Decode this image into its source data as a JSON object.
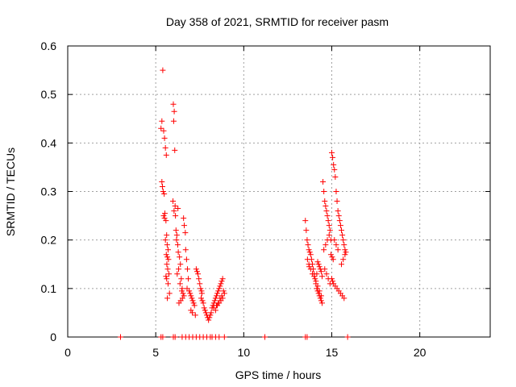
{
  "chart_data": {
    "type": "scatter",
    "title": "Day 358 of 2021, SRMTID for receiver pasm",
    "xlabel": "GPS time / hours",
    "ylabel": "SRMTID / TECUs",
    "xlim": [
      0,
      24
    ],
    "ylim": [
      0,
      0.6
    ],
    "xticks": [
      0,
      5,
      10,
      15,
      20
    ],
    "yticks": [
      0,
      0.1,
      0.2,
      0.3,
      0.4,
      0.5,
      0.6
    ],
    "xtick_labels": [
      "0",
      "5",
      "10",
      "15",
      "20"
    ],
    "ytick_labels": [
      "0",
      "0.1",
      "0.2",
      "0.3",
      "0.4",
      "0.5",
      "0.6"
    ],
    "grid": true,
    "marker": "+",
    "color": "#ff0000",
    "series": [
      {
        "x": [
          5.4,
          5.3,
          5.35,
          5.45,
          5.5,
          5.55,
          5.6,
          5.35,
          5.38,
          5.42,
          5.48,
          5.52,
          5.45,
          5.5,
          5.58,
          5.62,
          5.55,
          5.65,
          5.7,
          5.6,
          5.66,
          5.72,
          5.63,
          5.68,
          5.75,
          5.58,
          5.62,
          5.7,
          5.78,
          5.66,
          6.0,
          6.05,
          6.02,
          6.08,
          5.98,
          6.1,
          6.04,
          6.12,
          6.15,
          6.2,
          6.18,
          6.25,
          6.28,
          6.35,
          6.4,
          6.3,
          6.22,
          6.45,
          6.38,
          6.5,
          6.48,
          6.55,
          6.6,
          6.52,
          6.42,
          6.32,
          6.26,
          6.58,
          6.62,
          6.68,
          6.7,
          6.75,
          6.8,
          6.85,
          6.78,
          6.9,
          6.95,
          7.0,
          7.05,
          7.1,
          7.15,
          7.2,
          7.0,
          7.08,
          7.25,
          7.3,
          7.35,
          7.4,
          7.45,
          7.5,
          7.55,
          7.6,
          7.62,
          7.58,
          7.65,
          7.7,
          7.75,
          7.8,
          7.85,
          7.9,
          7.95,
          8.0,
          8.05,
          8.1,
          8.15,
          8.2,
          8.25,
          8.3,
          8.35,
          8.4,
          8.45,
          8.5,
          8.55,
          8.6,
          8.65,
          8.7,
          8.75,
          8.8,
          8.85,
          8.9,
          8.3,
          8.4,
          8.5,
          8.6,
          8.7,
          8.8,
          8.45,
          8.55,
          8.65,
          8.75,
          13.5,
          13.55,
          13.6,
          13.65,
          13.7,
          13.75,
          13.8,
          13.85,
          13.9,
          13.95,
          14.0,
          14.05,
          14.1,
          14.15,
          14.2,
          14.25,
          14.3,
          14.35,
          14.4,
          14.45,
          13.7,
          13.8,
          13.9,
          14.0,
          14.1,
          14.2,
          14.3,
          14.4,
          13.62,
          13.72,
          14.5,
          14.55,
          14.6,
          14.65,
          14.7,
          14.75,
          14.8,
          14.85,
          14.9,
          14.95,
          15.0,
          15.05,
          15.1,
          15.15,
          15.2,
          15.25,
          15.3,
          15.35,
          15.4,
          15.45,
          15.5,
          15.55,
          15.6,
          15.65,
          15.7,
          15.75,
          15.8,
          14.95,
          15.02,
          15.08,
          14.2,
          14.25,
          14.3,
          14.35,
          14.4,
          14.15,
          14.45,
          15.0,
          15.05,
          15.1,
          15.2,
          15.3,
          15.4,
          15.5,
          15.6,
          15.7,
          14.6,
          14.7,
          14.8,
          14.9,
          15.55,
          15.65,
          15.75,
          14.55,
          14.65,
          14.75,
          14.85,
          15.15,
          15.25,
          15.35,
          3.0,
          5.3,
          5.4,
          6.0,
          6.1,
          6.5,
          6.7,
          6.9,
          7.1,
          7.3,
          7.5,
          7.7,
          7.9,
          8.1,
          8.2,
          8.4,
          8.6,
          8.9,
          11.2,
          13.5,
          13.6,
          15.9
        ],
        "y": [
          0.55,
          0.43,
          0.445,
          0.425,
          0.41,
          0.39,
          0.375,
          0.32,
          0.31,
          0.3,
          0.295,
          0.255,
          0.25,
          0.245,
          0.24,
          0.21,
          0.2,
          0.19,
          0.18,
          0.17,
          0.165,
          0.16,
          0.15,
          0.14,
          0.13,
          0.125,
          0.12,
          0.11,
          0.09,
          0.08,
          0.48,
          0.465,
          0.445,
          0.385,
          0.28,
          0.27,
          0.26,
          0.25,
          0.22,
          0.21,
          0.2,
          0.19,
          0.175,
          0.165,
          0.15,
          0.14,
          0.13,
          0.12,
          0.11,
          0.1,
          0.095,
          0.09,
          0.085,
          0.08,
          0.075,
          0.07,
          0.265,
          0.245,
          0.23,
          0.215,
          0.18,
          0.16,
          0.14,
          0.12,
          0.1,
          0.095,
          0.09,
          0.085,
          0.08,
          0.075,
          0.07,
          0.065,
          0.055,
          0.05,
          0.045,
          0.14,
          0.135,
          0.13,
          0.12,
          0.11,
          0.1,
          0.095,
          0.09,
          0.08,
          0.075,
          0.07,
          0.06,
          0.055,
          0.05,
          0.045,
          0.04,
          0.035,
          0.04,
          0.045,
          0.05,
          0.06,
          0.065,
          0.07,
          0.075,
          0.08,
          0.085,
          0.09,
          0.095,
          0.1,
          0.105,
          0.11,
          0.115,
          0.12,
          0.095,
          0.09,
          0.06,
          0.055,
          0.065,
          0.07,
          0.075,
          0.08,
          0.065,
          0.07,
          0.08,
          0.085,
          0.24,
          0.22,
          0.2,
          0.19,
          0.18,
          0.175,
          0.17,
          0.16,
          0.15,
          0.14,
          0.13,
          0.12,
          0.11,
          0.1,
          0.095,
          0.09,
          0.085,
          0.08,
          0.075,
          0.07,
          0.15,
          0.14,
          0.13,
          0.125,
          0.115,
          0.105,
          0.095,
          0.085,
          0.16,
          0.145,
          0.32,
          0.3,
          0.28,
          0.27,
          0.26,
          0.25,
          0.24,
          0.23,
          0.22,
          0.2,
          0.38,
          0.37,
          0.355,
          0.345,
          0.33,
          0.3,
          0.28,
          0.26,
          0.25,
          0.24,
          0.23,
          0.22,
          0.21,
          0.2,
          0.19,
          0.18,
          0.175,
          0.17,
          0.165,
          0.16,
          0.155,
          0.15,
          0.145,
          0.14,
          0.135,
          0.13,
          0.125,
          0.12,
          0.115,
          0.11,
          0.105,
          0.1,
          0.095,
          0.09,
          0.085,
          0.08,
          0.14,
          0.13,
          0.12,
          0.11,
          0.15,
          0.16,
          0.17,
          0.18,
          0.19,
          0.2,
          0.21,
          0.2,
          0.19,
          0.18,
          0,
          0,
          0,
          0,
          0,
          0,
          0,
          0,
          0,
          0,
          0,
          0,
          0,
          0,
          0,
          0,
          0,
          0,
          0,
          0,
          0,
          0
        ]
      }
    ]
  }
}
